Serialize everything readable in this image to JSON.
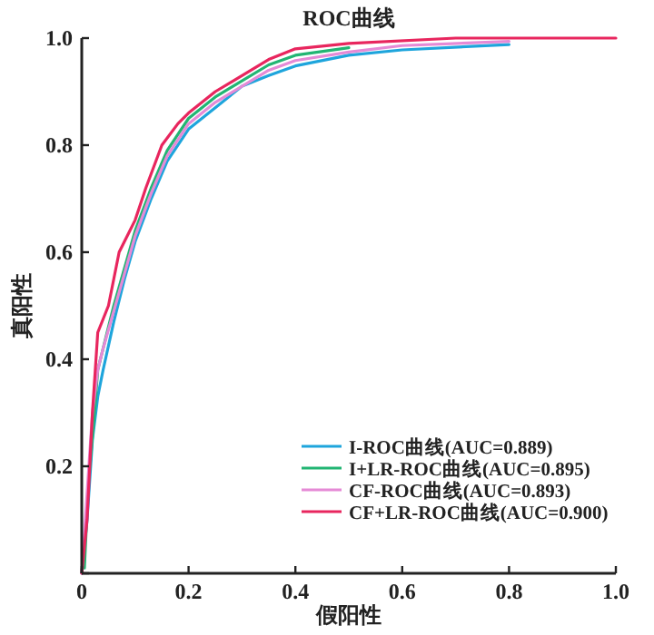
{
  "chart_data": {
    "type": "line",
    "title": "ROC曲线",
    "xlabel": "假阳性",
    "ylabel": "真阳性",
    "xlim": [
      0,
      1
    ],
    "ylim": [
      0,
      1
    ],
    "xticks": [
      0,
      0.2,
      0.4,
      0.6,
      0.8,
      {
        "value": 1,
        "label": "1.0"
      }
    ],
    "yticks": [
      {
        "value": 0,
        "label": null
      },
      0.2,
      0.4,
      0.6,
      0.8,
      {
        "value": 1,
        "label": "1.0"
      }
    ],
    "grid": false,
    "legend": "bottom right",
    "marker": "none",
    "line_style": "solid",
    "series": [
      {
        "name": "I-ROC曲线(AUC=0.889)",
        "color": "#1ea5dc",
        "x": [
          0,
          0.01,
          0.02,
          0.03,
          0.04,
          0.06,
          0.08,
          0.1,
          0.13,
          0.16,
          0.2,
          0.25,
          0.3,
          0.35,
          0.4,
          0.5,
          0.6,
          0.8
        ],
        "values": [
          0,
          0.1,
          0.25,
          0.33,
          0.38,
          0.47,
          0.55,
          0.62,
          0.7,
          0.77,
          0.83,
          0.87,
          0.91,
          0.93,
          0.948,
          0.968,
          0.978,
          0.988
        ]
      },
      {
        "name": "I+LR-ROC曲线(AUC=0.895)",
        "color": "#22b573",
        "x": [
          0.005,
          0.012,
          0.025,
          0.03,
          0.04,
          0.06,
          0.08,
          0.1,
          0.13,
          0.16,
          0.2,
          0.25,
          0.3,
          0.35,
          0.4,
          0.5
        ],
        "values": [
          0.01,
          0.16,
          0.315,
          0.38,
          0.42,
          0.5,
          0.57,
          0.64,
          0.72,
          0.79,
          0.85,
          0.89,
          0.92,
          0.95,
          0.968,
          0.982
        ]
      },
      {
        "name": "CF-ROC曲线(AUC=0.893)",
        "color": "#e58ad6",
        "x": [
          0,
          0.01,
          0.02,
          0.03,
          0.04,
          0.06,
          0.08,
          0.1,
          0.13,
          0.16,
          0.2,
          0.25,
          0.3,
          0.35,
          0.4,
          0.5,
          0.6,
          0.8
        ],
        "values": [
          0,
          0.15,
          0.3,
          0.38,
          0.42,
          0.49,
          0.56,
          0.63,
          0.71,
          0.78,
          0.84,
          0.88,
          0.91,
          0.94,
          0.958,
          0.974,
          0.986,
          0.994
        ]
      },
      {
        "name": "CF+LR-ROC曲线(AUC=0.900)",
        "color": "#e8265e",
        "x": [
          0,
          0.01,
          0.02,
          0.03,
          0.05,
          0.07,
          0.1,
          0.12,
          0.15,
          0.18,
          0.2,
          0.25,
          0.3,
          0.35,
          0.4,
          0.5,
          0.7,
          1
        ],
        "values": [
          0,
          0.1,
          0.3,
          0.45,
          0.5,
          0.6,
          0.66,
          0.72,
          0.8,
          0.84,
          0.86,
          0.9,
          0.93,
          0.96,
          0.98,
          0.99,
          1,
          1
        ]
      }
    ]
  }
}
